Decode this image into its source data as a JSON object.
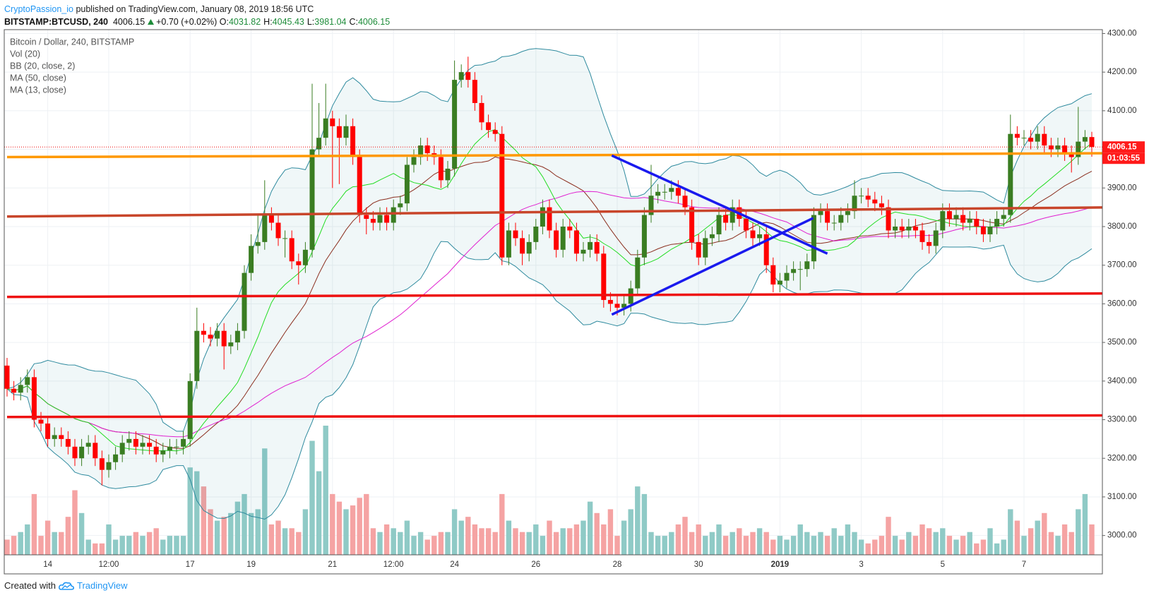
{
  "header": {
    "publisher": "CryptoPassion_io",
    "published": "published on TradingView.com, January 08, 2019 18:56 UTC",
    "symbol": "BITSTAMP:BTCUSD, 240",
    "price": "4006.15",
    "change": "+0.70 (+0.02%)",
    "ohlc": [
      {
        "label": "O:",
        "value": "4031.82"
      },
      {
        "label": "H:",
        "value": "4045.43"
      },
      {
        "label": "L:",
        "value": "3981.04"
      },
      {
        "label": "C:",
        "value": "4006.15"
      }
    ]
  },
  "footer": {
    "text": "Created with",
    "brand": "TradingView"
  },
  "chart_data": {
    "type": "candlestick",
    "title": "Bitcoin / Dollar, 240, BITSTAMP",
    "volume_name": "Vol (20)",
    "up_color": "#3a7d22",
    "down_color": "#ff0000",
    "volume_up_color": "#8fcac6",
    "volume_down_color": "#f5a3a3",
    "indicators": [
      {
        "name": "BB (20, close, 2)",
        "kind": "bb",
        "period": 20,
        "mult": 2,
        "color": "#2e8a9e",
        "basis_color": "#8b2e1e"
      },
      {
        "name": "MA (50, close)",
        "kind": "ma",
        "period": 50,
        "color": "#e020d0"
      },
      {
        "name": "MA (13, close)",
        "kind": "ma",
        "period": 13,
        "color": "#22dd22"
      }
    ],
    "drawings": [
      {
        "color": "#ff9800",
        "start": [
          0,
          3980
        ],
        "end": [
          165,
          3990
        ]
      },
      {
        "color": "#c8452a",
        "start": [
          0,
          3826
        ],
        "end": [
          165,
          3850
        ]
      },
      {
        "color": "#ee1111",
        "start": [
          0,
          3618
        ],
        "end": [
          165,
          3627
        ]
      },
      {
        "color": "#ee1111",
        "start": [
          0,
          3307
        ],
        "end": [
          165,
          3311
        ]
      },
      {
        "color": "#1a1aee",
        "start": [
          89.2,
          3984
        ],
        "end": [
          121,
          3730
        ]
      },
      {
        "color": "#1a1aee",
        "start": [
          89.2,
          3572
        ],
        "end": [
          118.9,
          3822
        ]
      }
    ],
    "countdown": "01:03:55",
    "ylim": [
      2950,
      4310
    ],
    "yticks": [
      {
        "value": 3000,
        "label": "3000.00"
      },
      {
        "value": 3100,
        "label": "3100.00"
      },
      {
        "value": 3200,
        "label": "3200.00"
      },
      {
        "value": 3300,
        "label": "3300.00"
      },
      {
        "value": 3400,
        "label": "3400.00"
      },
      {
        "value": 3500,
        "label": "3500.00"
      },
      {
        "value": 3600,
        "label": "3600.00"
      },
      {
        "value": 3700,
        "label": "3700.00"
      },
      {
        "value": 3800,
        "label": "3800.00"
      },
      {
        "value": 3900,
        "label": "3900.00"
      },
      {
        "value": 4000,
        "label": "4000.00"
      },
      {
        "value": 4100,
        "label": "4100.00"
      },
      {
        "value": 4200,
        "label": "4200.00"
      },
      {
        "value": 4300,
        "label": "4300.00"
      }
    ],
    "grid": true,
    "categories": [
      null,
      null,
      null,
      null,
      null,
      null,
      "14",
      null,
      null,
      null,
      null,
      null,
      null,
      null,
      null,
      "12:00",
      null,
      null,
      null,
      null,
      null,
      null,
      null,
      null,
      null,
      null,
      null,
      "17",
      null,
      null,
      null,
      null,
      null,
      null,
      null,
      null,
      "19",
      null,
      null,
      null,
      null,
      null,
      null,
      null,
      null,
      null,
      null,
      null,
      "21",
      null,
      null,
      null,
      null,
      null,
      null,
      null,
      null,
      "12:00",
      null,
      null,
      null,
      null,
      null,
      null,
      null,
      null,
      "24",
      null,
      null,
      null,
      null,
      null,
      null,
      null,
      null,
      null,
      null,
      null,
      "26",
      null,
      null,
      null,
      null,
      null,
      null,
      null,
      null,
      null,
      null,
      null,
      "28",
      null,
      null,
      null,
      null,
      null,
      null,
      null,
      null,
      null,
      null,
      null,
      "30",
      null,
      null,
      null,
      null,
      null,
      null,
      null,
      null,
      null,
      null,
      null,
      "2019",
      null,
      null,
      null,
      null,
      null,
      null,
      null,
      null,
      null,
      null,
      null,
      "3",
      null,
      null,
      null,
      null,
      null,
      null,
      null,
      null,
      null,
      null,
      null,
      "5",
      null,
      null,
      null,
      null,
      null,
      null,
      null,
      null,
      null,
      null,
      null,
      "7",
      null,
      null,
      null,
      null,
      null,
      null,
      null,
      null,
      null,
      null
    ],
    "open": [
      3440,
      3380,
      3370,
      3390,
      3410,
      3300,
      3290,
      3250,
      3260,
      3250,
      3230,
      3200,
      3230,
      3240,
      3200,
      3170,
      3190,
      3210,
      3240,
      3250,
      3230,
      3240,
      3230,
      3210,
      3220,
      3230,
      3230,
      3250,
      3400,
      3530,
      3520,
      3510,
      3530,
      3490,
      3500,
      3530,
      3680,
      3750,
      3760,
      3830,
      3810,
      3770,
      3770,
      3710,
      3700,
      3740,
      4000,
      4030,
      4080,
      4060,
      4030,
      4060,
      3980,
      3830,
      3820,
      3810,
      3830,
      3810,
      3850,
      3860,
      3960,
      3980,
      4010,
      3990,
      3980,
      3920,
      3950,
      4180,
      4200,
      4180,
      4120,
      4070,
      4050,
      4040,
      3720,
      3790,
      3770,
      3730,
      3760,
      3800,
      3850,
      3790,
      3740,
      3800,
      3790,
      3730,
      3740,
      3760,
      3730,
      3610,
      3600,
      3590,
      3600,
      3640,
      3720,
      3830,
      3880,
      3890,
      3890,
      3900,
      3880,
      3850,
      3760,
      3720,
      3770,
      3780,
      3830,
      3810,
      3850,
      3820,
      3790,
      3770,
      3780,
      3700,
      3650,
      3660,
      3680,
      3690,
      3690,
      3710,
      3830,
      3840,
      3810,
      3810,
      3830,
      3840,
      3880,
      3880,
      3870,
      3860,
      3850,
      3790,
      3800,
      3790,
      3800,
      3790,
      3760,
      3750,
      3790,
      3840,
      3820,
      3830,
      3810,
      3820,
      3800,
      3780,
      3800,
      3820,
      3830,
      4040,
      4030,
      4030,
      4020,
      4040,
      4010,
      4000,
      4010,
      3990,
      3980,
      4020,
      4031.82
    ],
    "high": [
      3460,
      3400,
      3410,
      3430,
      3430,
      3320,
      3310,
      3280,
      3280,
      3270,
      3250,
      3250,
      3260,
      3260,
      3220,
      3210,
      3230,
      3260,
      3270,
      3270,
      3260,
      3260,
      3250,
      3240,
      3250,
      3250,
      3270,
      3420,
      3590,
      3550,
      3540,
      3550,
      3550,
      3520,
      3550,
      3700,
      3780,
      3830,
      3920,
      3850,
      3830,
      3790,
      3790,
      3730,
      3760,
      4170,
      4120,
      4170,
      4100,
      4080,
      4090,
      4080,
      4000,
      3850,
      3840,
      3850,
      3850,
      3870,
      3880,
      3980,
      4000,
      4030,
      4030,
      4010,
      4000,
      3970,
      4230,
      4220,
      4240,
      4200,
      4140,
      4090,
      4070,
      4060,
      3810,
      3810,
      3790,
      3780,
      3820,
      3870,
      3870,
      3810,
      3820,
      3820,
      3810,
      3760,
      3780,
      3780,
      3750,
      3630,
      3620,
      3620,
      3660,
      3740,
      3850,
      3960,
      3910,
      3910,
      3920,
      3920,
      3900,
      3870,
      3780,
      3790,
      3800,
      3850,
      3850,
      3870,
      3870,
      3840,
      3810,
      3800,
      3800,
      3720,
      3680,
      3700,
      3710,
      3710,
      3730,
      3850,
      3860,
      3860,
      3830,
      3850,
      3860,
      3920,
      3900,
      3900,
      3890,
      3880,
      3870,
      3820,
      3820,
      3820,
      3820,
      3810,
      3780,
      3810,
      3860,
      3860,
      3850,
      3850,
      3840,
      3840,
      3820,
      3820,
      3840,
      3850,
      4090,
      4060,
      4050,
      4050,
      4060,
      4060,
      4030,
      4030,
      4030,
      4010,
      4110,
      4050,
      4045.43
    ],
    "low": [
      3360,
      3350,
      3350,
      3370,
      3280,
      3270,
      3230,
      3230,
      3230,
      3210,
      3180,
      3180,
      3210,
      3180,
      3130,
      3150,
      3170,
      3190,
      3220,
      3210,
      3210,
      3210,
      3190,
      3190,
      3200,
      3210,
      3210,
      3230,
      3380,
      3500,
      3490,
      3490,
      3430,
      3470,
      3480,
      3510,
      3660,
      3730,
      3740,
      3790,
      3750,
      3720,
      3690,
      3650,
      3680,
      3720,
      3980,
      4010,
      3900,
      3910,
      4010,
      3960,
      3810,
      3780,
      3790,
      3790,
      3790,
      3790,
      3830,
      3840,
      3940,
      3960,
      3970,
      3960,
      3900,
      3900,
      3930,
      4160,
      4160,
      4100,
      4050,
      4030,
      4020,
      3700,
      3700,
      3750,
      3700,
      3710,
      3740,
      3780,
      3770,
      3720,
      3720,
      3770,
      3710,
      3710,
      3720,
      3710,
      3590,
      3580,
      3570,
      3570,
      3580,
      3620,
      3700,
      3810,
      3860,
      3870,
      3870,
      3860,
      3830,
      3740,
      3700,
      3700,
      3750,
      3760,
      3790,
      3790,
      3800,
      3770,
      3750,
      3750,
      3680,
      3630,
      3630,
      3640,
      3660,
      3635,
      3670,
      3690,
      3810,
      3790,
      3790,
      3790,
      3810,
      3820,
      3860,
      3850,
      3840,
      3830,
      3770,
      3770,
      3770,
      3770,
      3770,
      3740,
      3730,
      3730,
      3770,
      3800,
      3800,
      3790,
      3790,
      3780,
      3760,
      3760,
      3780,
      3800,
      3810,
      4010,
      4010,
      4000,
      4000,
      3990,
      3980,
      3980,
      3970,
      3940,
      3960,
      4000,
      3981.04
    ],
    "close": [
      3380,
      3370,
      3390,
      3410,
      3300,
      3290,
      3250,
      3260,
      3250,
      3230,
      3200,
      3230,
      3240,
      3200,
      3170,
      3190,
      3210,
      3240,
      3250,
      3230,
      3240,
      3230,
      3210,
      3220,
      3230,
      3230,
      3250,
      3400,
      3530,
      3520,
      3510,
      3530,
      3490,
      3500,
      3530,
      3680,
      3750,
      3760,
      3830,
      3810,
      3770,
      3770,
      3710,
      3700,
      3740,
      4000,
      4030,
      4080,
      4060,
      4030,
      4060,
      3980,
      3830,
      3820,
      3810,
      3830,
      3810,
      3850,
      3860,
      3960,
      3980,
      4010,
      3990,
      3980,
      3920,
      3950,
      4180,
      4200,
      4180,
      4120,
      4070,
      4050,
      4040,
      3720,
      3790,
      3770,
      3730,
      3760,
      3800,
      3850,
      3790,
      3740,
      3800,
      3790,
      3730,
      3740,
      3760,
      3730,
      3610,
      3600,
      3590,
      3600,
      3640,
      3720,
      3830,
      3880,
      3890,
      3890,
      3900,
      3880,
      3850,
      3760,
      3720,
      3770,
      3780,
      3830,
      3810,
      3850,
      3820,
      3790,
      3770,
      3780,
      3700,
      3650,
      3660,
      3680,
      3690,
      3690,
      3710,
      3830,
      3840,
      3810,
      3810,
      3830,
      3840,
      3880,
      3880,
      3870,
      3860,
      3850,
      3790,
      3800,
      3790,
      3800,
      3790,
      3760,
      3750,
      3790,
      3840,
      3820,
      3830,
      3810,
      3820,
      3800,
      3780,
      3800,
      3820,
      3830,
      4040,
      4030,
      4030,
      4020,
      4040,
      4010,
      4000,
      4010,
      3990,
      3980,
      4020,
      4031.82,
      4006.15
    ],
    "volume": [
      20,
      25,
      30,
      40,
      80,
      25,
      45,
      30,
      30,
      50,
      85,
      55,
      20,
      15,
      15,
      40,
      20,
      25,
      25,
      30,
      25,
      30,
      35,
      20,
      25,
      25,
      25,
      115,
      110,
      90,
      60,
      45,
      50,
      55,
      70,
      80,
      55,
      60,
      140,
      40,
      45,
      35,
      35,
      30,
      60,
      150,
      110,
      170,
      80,
      70,
      60,
      65,
      75,
      80,
      35,
      30,
      40,
      35,
      30,
      45,
      25,
      30,
      20,
      25,
      30,
      30,
      60,
      45,
      50,
      40,
      35,
      35,
      30,
      80,
      45,
      35,
      30,
      30,
      40,
      25,
      45,
      30,
      35,
      35,
      40,
      45,
      70,
      55,
      40,
      60,
      25,
      45,
      60,
      90,
      80,
      30,
      25,
      25,
      30,
      40,
      50,
      30,
      40,
      25,
      30,
      40,
      25,
      30,
      35,
      25,
      30,
      35,
      30,
      20,
      25,
      20,
      25,
      40,
      30,
      25,
      30,
      25,
      35,
      25,
      40,
      30,
      20,
      15,
      20,
      25,
      50,
      25,
      20,
      30,
      25,
      40,
      35,
      30,
      35,
      25,
      20,
      25,
      30,
      15,
      20,
      35,
      15,
      20,
      60,
      45,
      25,
      35,
      45,
      55,
      30,
      25,
      40,
      30,
      60,
      80,
      40
    ]
  }
}
